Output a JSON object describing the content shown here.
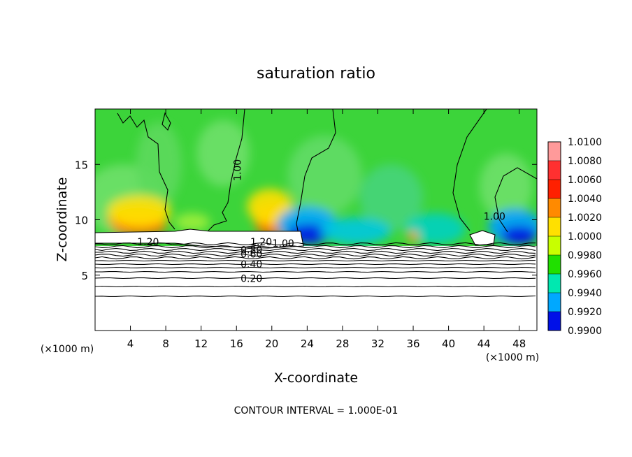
{
  "chart_data": {
    "type": "heatmap",
    "title": "saturation ratio",
    "xlabel": "X-coordinate",
    "ylabel": "Z-coordinate",
    "x_unit": "(×1000 m)",
    "y_unit": "(×1000 m)",
    "xlim": [
      0,
      50
    ],
    "ylim": [
      0,
      20
    ],
    "x_ticks": [
      4,
      8,
      12,
      16,
      20,
      24,
      28,
      32,
      36,
      40,
      44,
      48
    ],
    "y_ticks": [
      5,
      10,
      15
    ],
    "footer": "CONTOUR INTERVAL = 1.000E-01",
    "colorbar": {
      "values": [
        "1.0100",
        "1.0080",
        "1.0060",
        "1.0040",
        "1.0020",
        "1.0000",
        "0.9980",
        "0.9960",
        "0.9940",
        "0.9920",
        "0.9900"
      ],
      "colors": [
        "#ff9a9a",
        "#ff3030",
        "#ff2000",
        "#ff8a00",
        "#ffe000",
        "#c8ff00",
        "#20e000",
        "#00e8b0",
        "#00a8ff",
        "#0010e8",
        "#5a00a8"
      ]
    },
    "contour_labels": [
      {
        "text": "1.00",
        "x": 16.5,
        "y": 14.8
      },
      {
        "text": "1.00",
        "x": 45.2,
        "y": 10.3
      },
      {
        "text": "1.20",
        "x": 6.0,
        "y": 8.0
      },
      {
        "text": "1.20",
        "x": 18.8,
        "y": 8.0
      },
      {
        "text": "1.00",
        "x": 21.3,
        "y": 7.9
      },
      {
        "text": "0.80",
        "x": 17.7,
        "y": 7.3
      },
      {
        "text": "0.60",
        "x": 17.7,
        "y": 6.9
      },
      {
        "text": "0.40",
        "x": 17.7,
        "y": 6.0
      },
      {
        "text": "0.20",
        "x": 17.7,
        "y": 4.7
      }
    ]
  }
}
